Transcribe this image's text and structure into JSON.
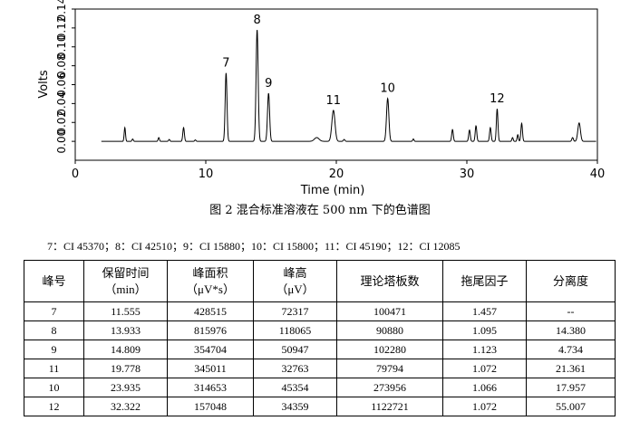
{
  "chart_data": {
    "type": "line",
    "xlabel": "Time (min)",
    "ylabel": "Volts",
    "xlim": [
      0,
      40
    ],
    "ylim": [
      -0.02,
      0.14
    ],
    "xticks": [
      "0",
      "10",
      "20",
      "30",
      "40"
    ],
    "yticks": [
      "0.00",
      "0.02",
      "0.04",
      "0.06",
      "0.08",
      "0.10",
      "0.12",
      "0.14"
    ],
    "baseline": 0.0,
    "peaks": [
      {
        "t": 3.8,
        "h": 0.0145,
        "w": 0.05
      },
      {
        "t": 4.4,
        "h": 0.0025,
        "w": 0.05
      },
      {
        "t": 6.4,
        "h": 0.004,
        "w": 0.05
      },
      {
        "t": 7.2,
        "h": 0.002,
        "w": 0.05
      },
      {
        "t": 8.3,
        "h": 0.0145,
        "w": 0.06
      },
      {
        "t": 9.2,
        "h": 0.0015,
        "w": 0.05
      },
      {
        "t": 11.555,
        "h": 0.0723,
        "w": 0.07,
        "label": "7"
      },
      {
        "t": 13.933,
        "h": 0.1181,
        "w": 0.08,
        "label": "8"
      },
      {
        "t": 14.809,
        "h": 0.0509,
        "w": 0.08,
        "label": "9"
      },
      {
        "t": 18.5,
        "h": 0.004,
        "w": 0.18
      },
      {
        "t": 19.778,
        "h": 0.0328,
        "w": 0.12,
        "label": "11"
      },
      {
        "t": 20.6,
        "h": 0.002,
        "w": 0.06
      },
      {
        "t": 23.935,
        "h": 0.0454,
        "w": 0.09,
        "label": "10"
      },
      {
        "t": 25.9,
        "h": 0.0025,
        "w": 0.05
      },
      {
        "t": 28.9,
        "h": 0.0125,
        "w": 0.06
      },
      {
        "t": 30.2,
        "h": 0.012,
        "w": 0.06
      },
      {
        "t": 30.7,
        "h": 0.0165,
        "w": 0.06
      },
      {
        "t": 31.8,
        "h": 0.0145,
        "w": 0.06
      },
      {
        "t": 32.322,
        "h": 0.0344,
        "w": 0.06,
        "label": "12"
      },
      {
        "t": 33.5,
        "h": 0.004,
        "w": 0.05
      },
      {
        "t": 33.9,
        "h": 0.007,
        "w": 0.05
      },
      {
        "t": 34.2,
        "h": 0.019,
        "w": 0.06
      },
      {
        "t": 38.1,
        "h": 0.004,
        "w": 0.06
      },
      {
        "t": 38.6,
        "h": 0.0195,
        "w": 0.1
      }
    ]
  },
  "figure_caption": "图 2  混合标准溶液在 500 nm 下的色谱图",
  "peak_legend": "7：CI 45370；8：CI 42510；9：CI 15880；10：CI 15800；11：CI 45190；12：CI 12085",
  "table": {
    "headers": [
      [
        "峰号"
      ],
      [
        "保留时间",
        "（min）"
      ],
      [
        "峰面积",
        "（μV*s）"
      ],
      [
        "峰高",
        "（μV）"
      ],
      [
        "理论塔板数"
      ],
      [
        "拖尾因子"
      ],
      [
        "分离度"
      ]
    ],
    "rows": [
      [
        "7",
        "11.555",
        "428515",
        "72317",
        "100471",
        "1.457",
        "--"
      ],
      [
        "8",
        "13.933",
        "815976",
        "118065",
        "90880",
        "1.095",
        "14.380"
      ],
      [
        "9",
        "14.809",
        "354704",
        "50947",
        "102280",
        "1.123",
        "4.734"
      ],
      [
        "11",
        "19.778",
        "345011",
        "32763",
        "79794",
        "1.072",
        "21.361"
      ],
      [
        "10",
        "23.935",
        "314653",
        "45354",
        "273956",
        "1.066",
        "17.957"
      ],
      [
        "12",
        "32.322",
        "157048",
        "34359",
        "1122721",
        "1.072",
        "55.007"
      ]
    ]
  }
}
